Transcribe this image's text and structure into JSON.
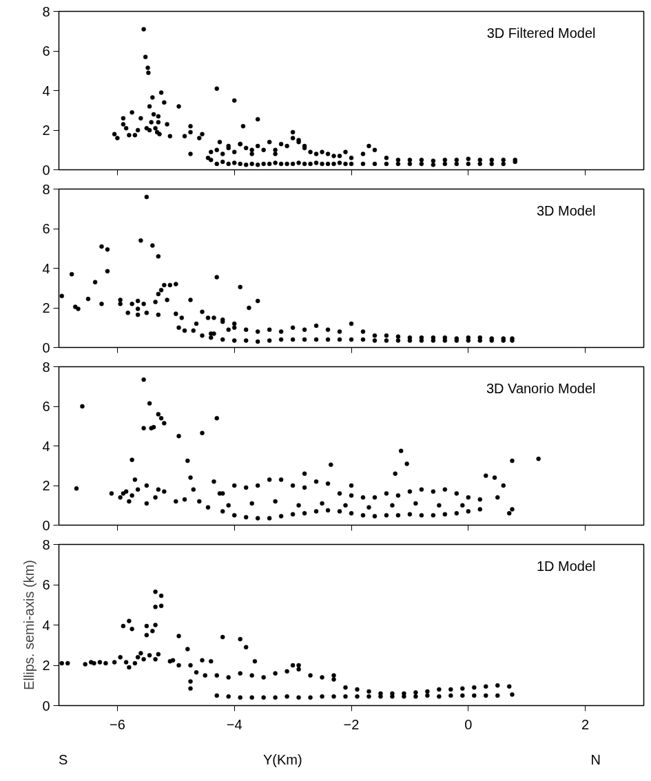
{
  "chart_data": [
    {
      "type": "scatter",
      "title": "3D Filtered Model",
      "xlim": [
        -7,
        3
      ],
      "ylim": [
        0,
        8
      ],
      "xticks": [
        -6,
        -4,
        -2,
        0,
        2
      ],
      "yticks": [
        0,
        2,
        4,
        6,
        8
      ],
      "tick_labels": "y",
      "grid": false,
      "marker": "circle",
      "series": [
        {
          "color": "#000000",
          "x": [
            -6.05,
            -6.0,
            -5.9,
            -5.9,
            -5.85,
            -5.8,
            -5.75,
            -5.7,
            -5.65,
            -5.6,
            -5.55,
            -5.52,
            -5.5,
            -5.48,
            -5.47,
            -5.45,
            -5.45,
            -5.42,
            -5.4,
            -5.38,
            -5.35,
            -5.32,
            -5.3,
            -5.3,
            -5.28,
            -5.25,
            -5.2,
            -5.15,
            -5.1,
            -4.95,
            -4.85,
            -4.75,
            -4.75,
            -4.75,
            -4.6,
            -4.55,
            -4.45,
            -4.3,
            -4.25,
            -4.1,
            -4.0,
            -3.85,
            -3.6,
            -3.9,
            -3.7,
            -3.3,
            -3.0,
            -2.9,
            -2.8,
            -1.7,
            -4.4,
            -4.3,
            -4.2,
            -4.1,
            -4.0,
            -3.9,
            -3.8,
            -3.7,
            -3.6,
            -3.5,
            -3.4,
            -3.3,
            -3.2,
            -3.1,
            -3.0,
            -2.9,
            -2.8,
            -2.7,
            -2.6,
            -2.5,
            -2.4,
            -2.3,
            -2.2,
            -2.1,
            -2.0,
            -1.8,
            -1.6,
            -1.4,
            -1.2,
            -1.0,
            -0.8,
            -0.6,
            -0.4,
            -0.2,
            0.0,
            0.2,
            0.4,
            0.6,
            0.8,
            -4.4,
            -4.3,
            -4.2,
            -4.1,
            -4.0,
            -3.9,
            -3.8,
            -3.7,
            -3.6,
            -3.5,
            -3.4,
            -3.3,
            -3.2,
            -3.1,
            -3.0,
            -2.9,
            -2.8,
            -2.7,
            -2.6,
            -2.5,
            -2.4,
            -2.3,
            -2.2,
            -2.1,
            -2.0,
            -1.8,
            -1.6,
            -1.4,
            -1.2,
            -1.0,
            -0.8,
            -0.6,
            -0.4,
            -0.2,
            0.0,
            0.2,
            0.4,
            0.6,
            0.8
          ],
          "values": [
            1.8,
            1.6,
            2.6,
            2.3,
            2.1,
            1.75,
            2.9,
            1.75,
            2.0,
            2.6,
            7.1,
            5.7,
            2.1,
            5.15,
            4.9,
            3.2,
            2.0,
            2.4,
            3.65,
            2.8,
            2.1,
            1.9,
            2.7,
            2.4,
            1.8,
            3.9,
            3.4,
            2.3,
            1.7,
            3.2,
            1.7,
            2.2,
            1.9,
            0.8,
            1.6,
            1.8,
            0.6,
            4.1,
            1.4,
            1.2,
            3.5,
            2.2,
            2.55,
            1.3,
            1.0,
            0.8,
            1.9,
            1.5,
            1.2,
            1.2,
            0.5,
            0.3,
            0.4,
            0.3,
            0.35,
            0.3,
            0.25,
            0.3,
            0.25,
            0.3,
            0.3,
            0.35,
            0.3,
            0.3,
            0.3,
            0.35,
            0.3,
            0.3,
            0.35,
            0.3,
            0.3,
            0.3,
            0.35,
            0.3,
            0.3,
            0.3,
            0.3,
            0.3,
            0.3,
            0.3,
            0.3,
            0.25,
            0.3,
            0.3,
            0.3,
            0.3,
            0.3,
            0.3,
            0.4,
            0.9,
            1.0,
            0.8,
            1.1,
            0.9,
            1.3,
            1.1,
            0.8,
            1.2,
            1.0,
            1.4,
            1.0,
            1.3,
            1.2,
            1.6,
            1.4,
            1.1,
            0.9,
            0.8,
            0.9,
            0.8,
            0.7,
            0.7,
            0.9,
            0.6,
            0.8,
            1.0,
            0.6,
            0.5,
            0.5,
            0.5,
            0.45,
            0.5,
            0.5,
            0.55,
            0.5,
            0.5,
            0.5,
            0.5
          ]
        }
      ]
    },
    {
      "type": "scatter",
      "title": "3D Model",
      "xlim": [
        -7,
        3
      ],
      "ylim": [
        0,
        8
      ],
      "xticks": [
        -6,
        -4,
        -2,
        0,
        2
      ],
      "yticks": [
        0,
        2,
        4,
        6,
        8
      ],
      "tick_labels": "y",
      "grid": false,
      "marker": "circle",
      "series": [
        {
          "color": "#000000",
          "x": [
            -6.95,
            -6.78,
            -6.72,
            -6.67,
            -6.5,
            -6.38,
            -6.27,
            -6.27,
            -6.17,
            -6.17,
            -5.95,
            -5.95,
            -5.82,
            -5.75,
            -5.65,
            -5.65,
            -5.65,
            -5.6,
            -5.55,
            -5.5,
            -5.5,
            -5.4,
            -5.35,
            -5.3,
            -5.3,
            -5.3,
            -5.25,
            -5.2,
            -5.15,
            -5.1,
            -5.0,
            -5.0,
            -4.95,
            -4.9,
            -4.85,
            -4.75,
            -4.7,
            -4.65,
            -4.55,
            -4.55,
            -4.45,
            -4.35,
            -4.35,
            -4.3,
            -4.2,
            -4.1,
            -4.0,
            -3.9,
            -3.75,
            -3.6,
            -4.4,
            -4.2,
            -4.0,
            -3.8,
            -3.6,
            -3.4,
            -3.2,
            -3.0,
            -2.8,
            -2.6,
            -2.4,
            -2.2,
            -2.0,
            -1.8,
            -1.6,
            -1.4,
            -1.2,
            -1.0,
            -0.8,
            -0.6,
            -0.4,
            -0.2,
            0.0,
            0.2,
            0.4,
            0.6,
            0.75,
            -4.4,
            -4.2,
            -4.0,
            -3.8,
            -3.6,
            -3.4,
            -3.2,
            -3.0,
            -2.8,
            -2.6,
            -2.4,
            -2.2,
            -2.0,
            -1.8,
            -1.6,
            -1.4,
            -1.2,
            -1.0,
            -0.8,
            -0.6,
            -0.4,
            -0.2,
            0.0,
            0.2,
            0.4,
            0.6,
            0.75
          ],
          "values": [
            2.6,
            3.7,
            2.05,
            1.95,
            2.45,
            3.3,
            5.1,
            2.2,
            4.95,
            3.85,
            2.4,
            2.2,
            1.75,
            2.2,
            2.35,
            1.95,
            1.65,
            5.4,
            2.2,
            7.6,
            1.75,
            5.15,
            2.3,
            4.6,
            2.7,
            1.65,
            2.9,
            3.15,
            2.4,
            3.15,
            3.2,
            1.7,
            1.0,
            1.5,
            0.85,
            2.4,
            0.85,
            1.2,
            1.8,
            0.6,
            1.5,
            1.5,
            0.7,
            3.55,
            1.4,
            0.9,
            1.2,
            3.05,
            2.0,
            2.35,
            0.5,
            0.4,
            0.35,
            0.35,
            0.3,
            0.35,
            0.4,
            0.4,
            0.4,
            0.4,
            0.4,
            0.4,
            0.4,
            0.4,
            0.35,
            0.35,
            0.35,
            0.35,
            0.35,
            0.35,
            0.35,
            0.35,
            0.35,
            0.35,
            0.35,
            0.35,
            0.35,
            0.7,
            1.3,
            1.0,
            0.9,
            0.8,
            0.9,
            0.8,
            1.0,
            0.9,
            1.1,
            0.9,
            0.8,
            1.2,
            0.8,
            0.6,
            0.6,
            0.55,
            0.5,
            0.5,
            0.5,
            0.5,
            0.45,
            0.5,
            0.5,
            0.45,
            0.45,
            0.45
          ]
        }
      ]
    },
    {
      "type": "scatter",
      "title": "3D Vanorio Model",
      "xlim": [
        -7,
        3
      ],
      "ylim": [
        0,
        8
      ],
      "xticks": [
        -6,
        -4,
        -2,
        0,
        2
      ],
      "yticks": [
        0,
        2,
        4,
        6,
        8
      ],
      "tick_labels": "y",
      "grid": false,
      "marker": "circle",
      "series": [
        {
          "color": "#000000",
          "x": [
            -6.7,
            -6.6,
            -6.1,
            -5.95,
            -5.9,
            -5.85,
            -5.8,
            -5.75,
            -5.75,
            -5.7,
            -5.65,
            -5.55,
            -5.55,
            -5.5,
            -5.5,
            -5.45,
            -5.42,
            -5.38,
            -5.35,
            -5.3,
            -5.3,
            -5.25,
            -5.2,
            -5.2,
            -5.0,
            -4.95,
            -4.85,
            -4.8,
            -4.75,
            -4.7,
            -4.6,
            -4.55,
            -4.45,
            -4.35,
            -4.3,
            -4.25,
            -2.8,
            -2.35,
            -2.0,
            -1.25,
            -1.15,
            -1.05,
            0.3,
            0.45,
            0.5,
            0.6,
            0.7,
            0.75,
            0.75,
            1.2,
            -4.2,
            -4.0,
            -3.8,
            -3.6,
            -3.4,
            -3.2,
            -3.0,
            -2.8,
            -2.6,
            -2.4,
            -2.2,
            -2.0,
            -1.8,
            -1.6,
            -1.4,
            -1.2,
            -1.0,
            -0.8,
            -0.6,
            -0.4,
            -0.2,
            0.0,
            0.2,
            -4.2,
            -4.0,
            -3.8,
            -3.6,
            -3.4,
            -3.2,
            -3.0,
            -2.8,
            -2.6,
            -2.4,
            -2.2,
            -2.0,
            -1.8,
            -1.6,
            -1.4,
            -1.2,
            -1.0,
            -0.8,
            -0.6,
            -0.4,
            -0.2,
            0.0,
            0.2,
            -4.1,
            -3.7,
            -3.3,
            -2.9,
            -2.5,
            -2.1,
            -1.7,
            -1.3,
            -0.9,
            -0.5,
            -0.1
          ],
          "values": [
            1.85,
            6.0,
            1.6,
            1.4,
            1.6,
            1.7,
            1.2,
            3.3,
            1.5,
            2.3,
            1.8,
            7.35,
            4.9,
            2.0,
            1.1,
            6.15,
            4.9,
            4.95,
            1.4,
            5.6,
            1.8,
            5.4,
            5.15,
            1.7,
            1.2,
            4.5,
            1.3,
            3.25,
            2.4,
            1.8,
            1.2,
            4.65,
            0.9,
            2.2,
            5.4,
            1.6,
            2.6,
            3.05,
            2.0,
            2.6,
            3.75,
            3.1,
            2.5,
            2.4,
            1.4,
            2.0,
            0.6,
            3.25,
            0.8,
            3.35,
            0.7,
            0.5,
            0.4,
            0.35,
            0.35,
            0.45,
            0.55,
            0.6,
            0.7,
            0.75,
            0.7,
            0.6,
            0.5,
            0.45,
            0.5,
            0.5,
            0.55,
            0.5,
            0.5,
            0.55,
            0.6,
            0.7,
            0.8,
            1.6,
            2.0,
            1.9,
            2.0,
            2.3,
            2.3,
            2.0,
            1.9,
            2.2,
            2.1,
            1.6,
            1.5,
            1.4,
            1.4,
            1.6,
            1.5,
            1.7,
            1.8,
            1.7,
            1.8,
            1.6,
            1.4,
            1.3,
            1.0,
            1.1,
            1.2,
            1.0,
            1.1,
            1.0,
            0.9,
            1.0,
            1.1,
            1.0,
            1.0
          ]
        }
      ]
    },
    {
      "type": "scatter",
      "title": "1D Model",
      "xlabel": "Y(Km)",
      "ylabel": "Ellips. semi-axis (km)",
      "annotations": [
        "S",
        "N"
      ],
      "xlim": [
        -7,
        3
      ],
      "ylim": [
        0,
        8
      ],
      "xticks": [
        -6,
        -4,
        -2,
        0,
        2
      ],
      "yticks": [
        0,
        2,
        4,
        6,
        8
      ],
      "grid": false,
      "marker": "circle",
      "series": [
        {
          "color": "#000000",
          "x": [
            -6.95,
            -6.85,
            -6.55,
            -6.45,
            -6.4,
            -6.3,
            -6.2,
            -6.05,
            -5.95,
            -5.9,
            -5.85,
            -5.8,
            -5.8,
            -5.75,
            -5.7,
            -5.65,
            -5.6,
            -5.55,
            -5.5,
            -5.5,
            -5.45,
            -5.4,
            -5.35,
            -5.35,
            -5.35,
            -5.35,
            -5.25,
            -5.25,
            -5.3,
            -5.1,
            -5.05,
            -4.95,
            -4.95,
            -4.8,
            -4.75,
            -4.75,
            -4.75,
            -4.65,
            -4.55,
            -4.5,
            -4.4,
            -4.2,
            -3.9,
            -3.8,
            -3.65,
            -3.0,
            -2.9,
            -2.3,
            -4.3,
            -4.1,
            -3.9,
            -3.7,
            -3.5,
            -3.3,
            -3.1,
            -2.9,
            -2.7,
            -2.5,
            -2.3,
            -2.1,
            -1.9,
            -1.7,
            -1.5,
            -1.3,
            -1.1,
            -0.9,
            -0.7,
            -0.5,
            -0.3,
            -0.1,
            0.1,
            0.3,
            0.5,
            0.75,
            -4.3,
            -4.1,
            -3.9,
            -3.7,
            -3.5,
            -3.3,
            -3.1,
            -2.9,
            -2.7,
            -2.5,
            -2.3,
            -2.1,
            -1.9,
            -1.7,
            -1.5,
            -1.3,
            -1.1,
            -0.9,
            -0.7,
            -0.5,
            -0.3,
            -0.1,
            0.1,
            0.3,
            0.5,
            0.7
          ],
          "values": [
            2.1,
            2.1,
            2.05,
            2.15,
            2.1,
            2.15,
            2.1,
            2.15,
            2.4,
            3.95,
            2.15,
            4.2,
            1.9,
            3.8,
            2.1,
            2.4,
            2.6,
            2.3,
            3.95,
            3.5,
            2.5,
            3.7,
            5.65,
            4.9,
            4.0,
            2.3,
            5.45,
            4.95,
            2.55,
            2.2,
            2.25,
            3.45,
            2.0,
            2.8,
            2.0,
            1.2,
            0.85,
            1.65,
            2.25,
            1.5,
            2.2,
            3.4,
            3.3,
            2.9,
            2.2,
            2.0,
            2.0,
            1.5,
            0.5,
            0.45,
            0.4,
            0.4,
            0.4,
            0.4,
            0.45,
            0.4,
            0.4,
            0.45,
            0.45,
            0.45,
            0.45,
            0.45,
            0.45,
            0.45,
            0.45,
            0.45,
            0.5,
            0.45,
            0.5,
            0.5,
            0.5,
            0.5,
            0.5,
            0.55,
            1.5,
            1.4,
            1.6,
            1.5,
            1.4,
            1.6,
            1.7,
            1.8,
            1.5,
            1.4,
            1.3,
            0.9,
            0.8,
            0.7,
            0.6,
            0.6,
            0.6,
            0.65,
            0.7,
            0.8,
            0.8,
            0.85,
            0.9,
            0.95,
            1.0,
            0.95
          ]
        }
      ]
    }
  ]
}
